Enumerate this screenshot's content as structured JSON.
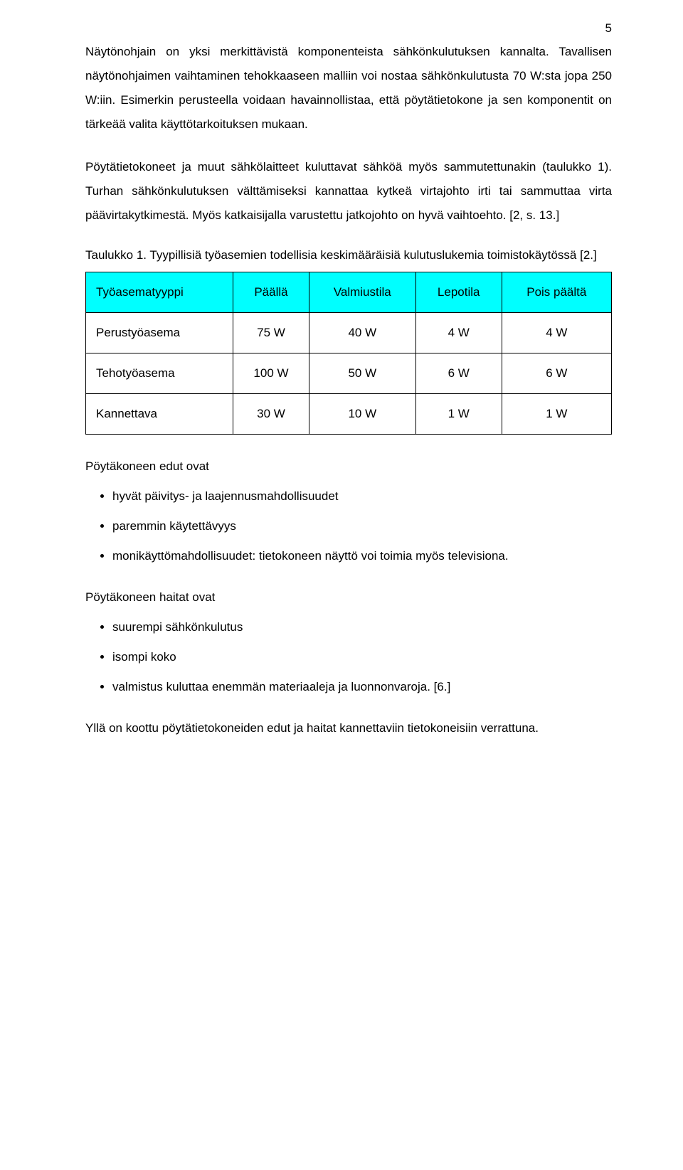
{
  "page_number": "5",
  "paragraphs": {
    "p1": "Näytönohjain on yksi merkittävistä komponenteista sähkönkulutuksen kannalta. Tavallisen näytönohjaimen vaihtaminen tehokkaaseen malliin voi nostaa sähkönkulutusta 70 W:sta jopa 250 W:iin. Esimerkin perusteella voidaan havainnollistaa, että pöytätietokone ja sen komponentit on tärkeää valita käyttötarkoituksen mukaan.",
    "p2": "Pöytätietokoneet ja muut sähkölaitteet kuluttavat sähköä myös sammutettunakin (taulukko 1). Turhan sähkönkulutuksen välttämiseksi kannattaa kytkeä virtajohto irti tai sammuttaa virta päävirtakytkimestä. Myös katkaisijalla varustettu jatkojohto on hyvä vaihtoehto. [2, s. 13.]",
    "caption": "Taulukko 1. Tyypillisiä työasemien todellisia keskimääräisiä kulutuslukemia toimistokäytössä [2.]",
    "advantages_head": "Pöytäkoneen edut ovat",
    "disadvantages_head": "Pöytäkoneen haitat ovat",
    "closing": "Yllä on koottu pöytätietokoneiden edut ja haitat kannettaviin tietokoneisiin verrattuna."
  },
  "table": {
    "header_bg": "#00ffff",
    "border_color": "#000000",
    "columns": [
      "Työasematyyppi",
      "Päällä",
      "Valmiustila",
      "Lepotila",
      "Pois päältä"
    ],
    "rows": [
      [
        "Perustyöasema",
        "75 W",
        "40 W",
        "4 W",
        "4 W"
      ],
      [
        "Tehotyöasema",
        "100 W",
        "50 W",
        "6 W",
        "6 W"
      ],
      [
        "Kannettava",
        "30 W",
        "10 W",
        "1 W",
        "1 W"
      ]
    ]
  },
  "advantages": [
    "hyvät päivitys- ja laajennusmahdollisuudet",
    "paremmin käytettävyys",
    "monikäyttömahdollisuudet: tietokoneen näyttö voi toimia myös televisiona."
  ],
  "disadvantages": [
    "suurempi sähkönkulutus",
    "isompi koko",
    "valmistus kuluttaa enemmän materiaaleja ja luonnonvaroja. [6.]"
  ],
  "typography": {
    "body_fontsize_pt": 12.5,
    "line_height": 2.0,
    "font_family": "Arial"
  }
}
